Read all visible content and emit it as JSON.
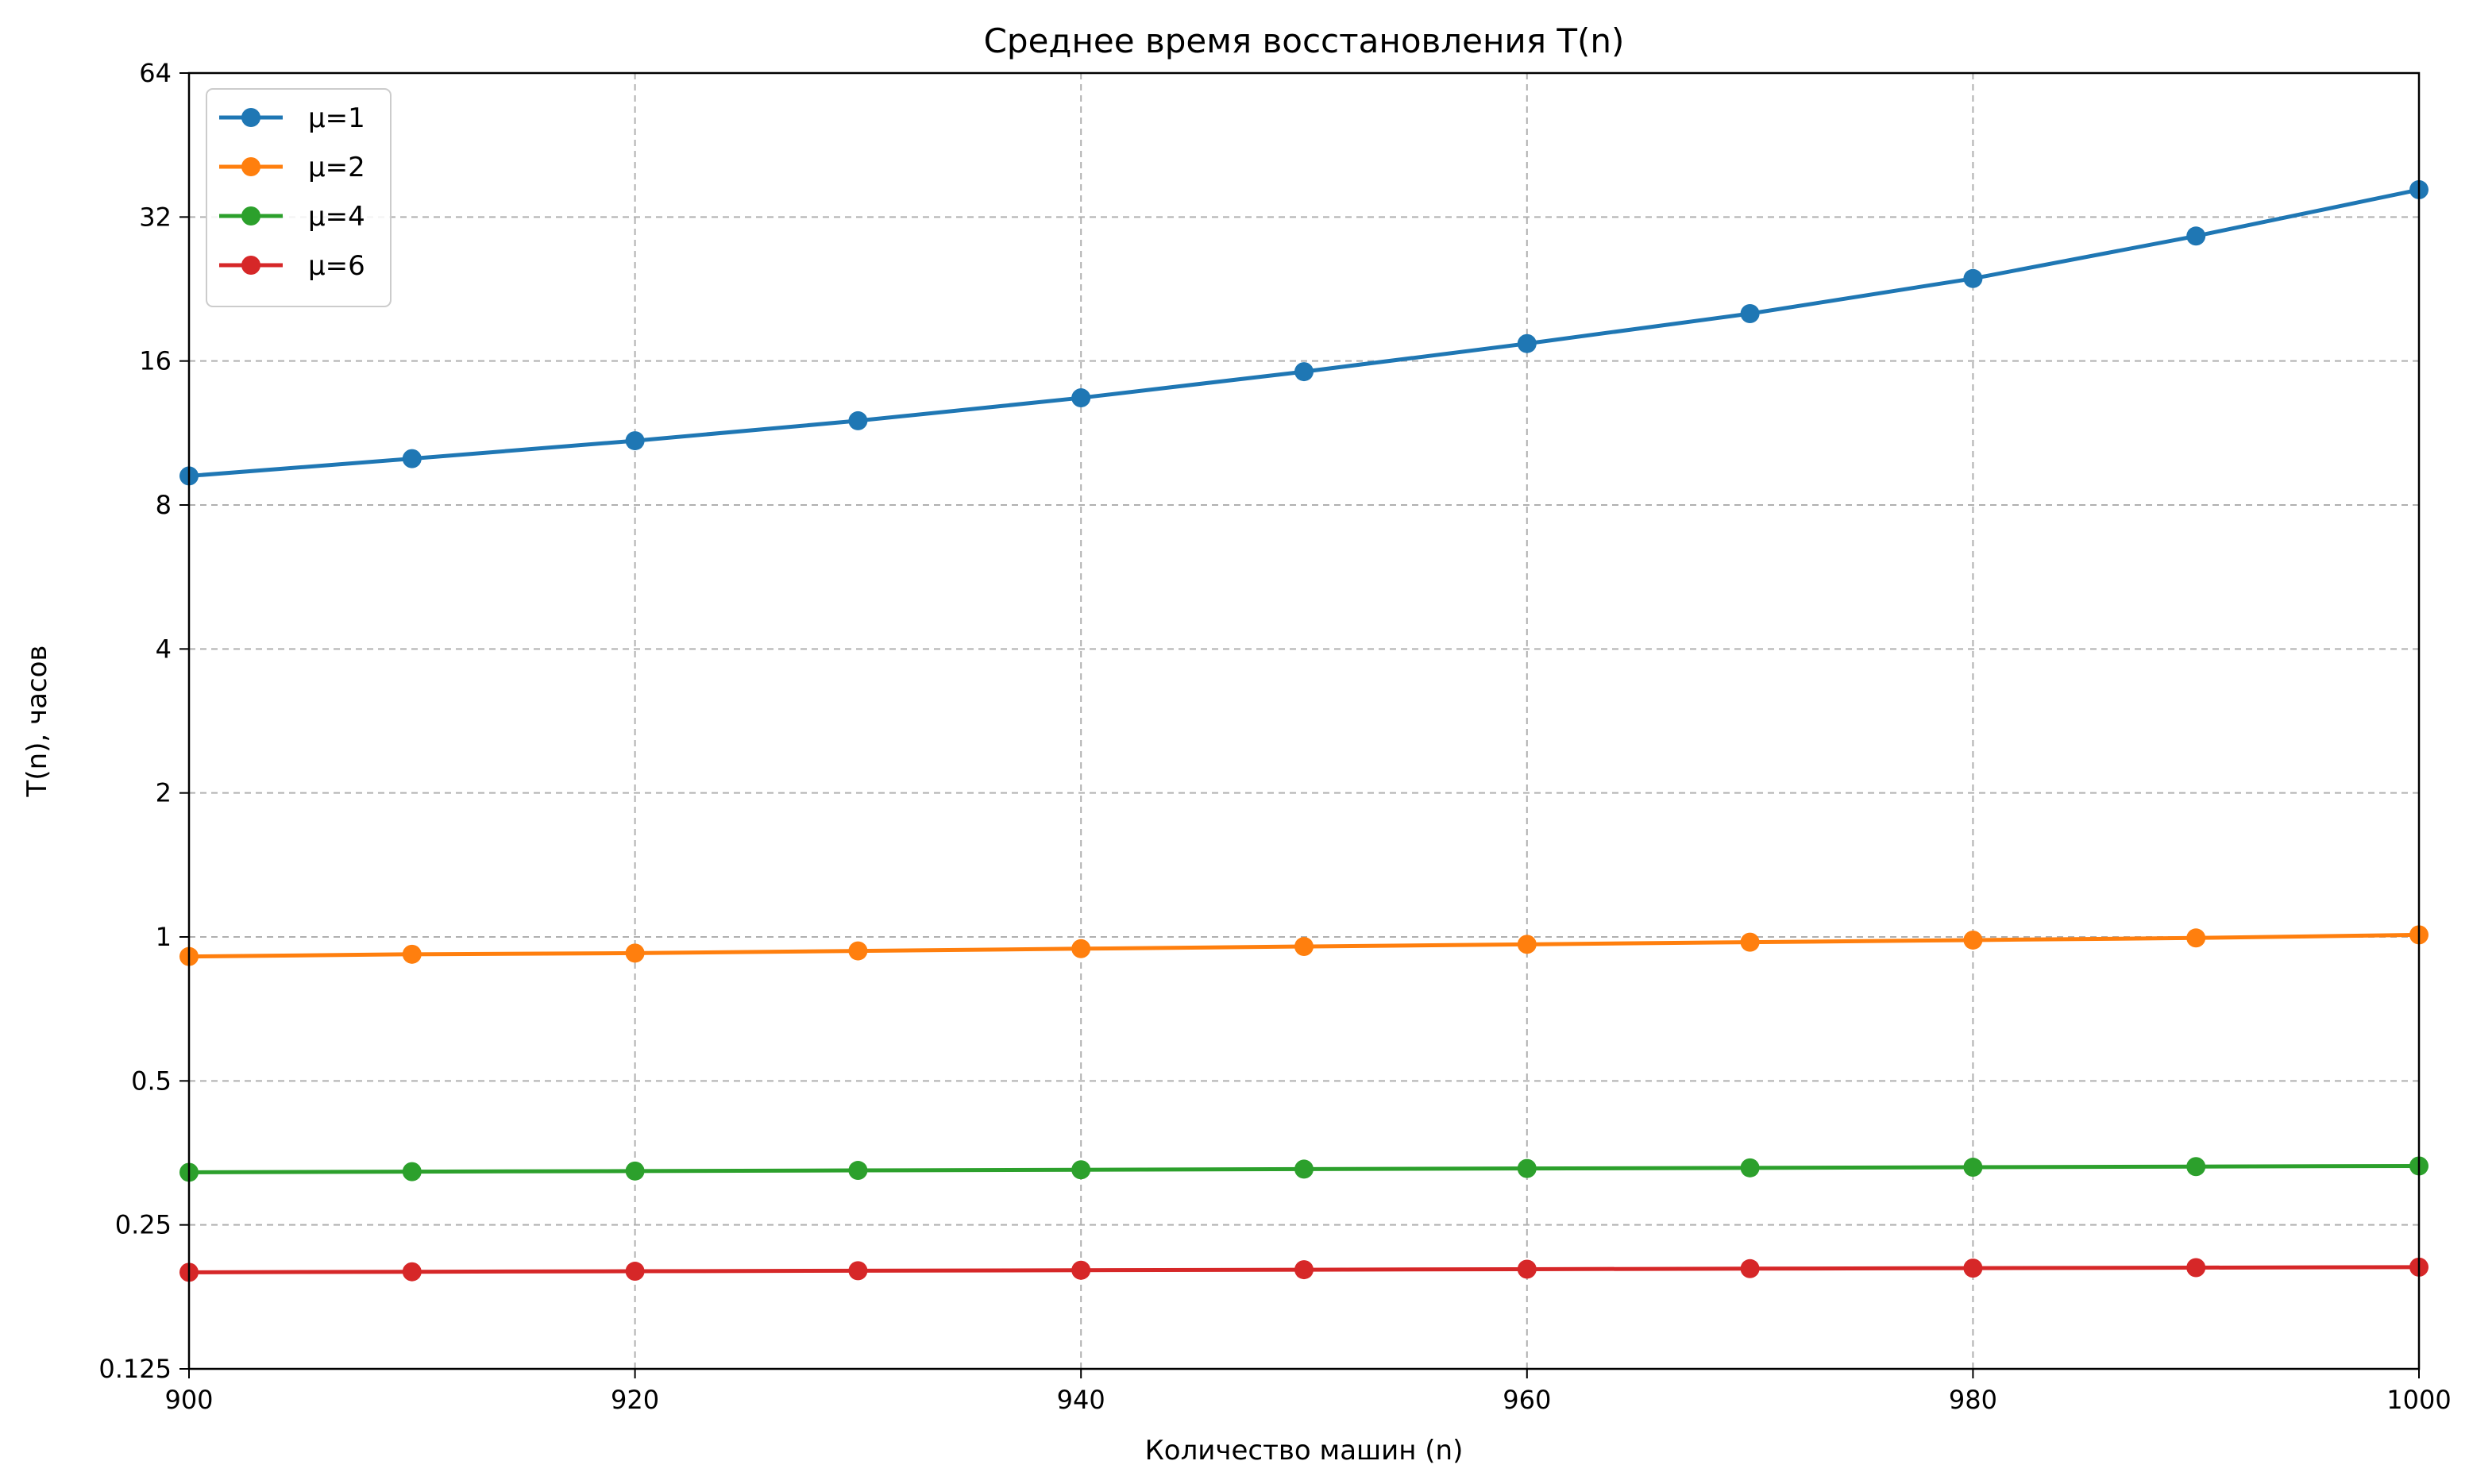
{
  "chart_data": {
    "type": "line",
    "title": "Среднее время восстановления T(n)",
    "xlabel": "Количество машин (n)",
    "ylabel": "T(n), часов",
    "xlim": [
      900,
      1000
    ],
    "ylim": [
      0.125,
      64
    ],
    "yscale": "log2",
    "xticks": [
      900,
      920,
      940,
      960,
      980,
      1000
    ],
    "xtick_labels": [
      "900",
      "920",
      "940",
      "960",
      "980",
      "1000"
    ],
    "yticks": [
      0.125,
      0.25,
      0.5,
      1,
      2,
      4,
      8,
      16,
      32,
      64
    ],
    "ytick_labels": [
      "0.125",
      "0.25",
      "0.5",
      "1",
      "2",
      "4",
      "8",
      "16",
      "32",
      "64"
    ],
    "grid": true,
    "legend_position": "top-left",
    "x": [
      900,
      910,
      920,
      930,
      940,
      950,
      960,
      970,
      980,
      990,
      1000
    ],
    "series": [
      {
        "name": "μ=1",
        "color": "#1f77b4",
        "values": [
          9.2,
          10.0,
          10.9,
          12.0,
          13.4,
          15.2,
          17.4,
          20.1,
          23.8,
          29.2,
          36.5
        ]
      },
      {
        "name": "μ=2",
        "color": "#ff7f0e",
        "values": [
          0.91,
          0.92,
          0.925,
          0.935,
          0.945,
          0.955,
          0.965,
          0.975,
          0.985,
          0.995,
          1.01
        ]
      },
      {
        "name": "μ=4",
        "color": "#2ca02c",
        "values": [
          0.322,
          0.323,
          0.324,
          0.325,
          0.326,
          0.327,
          0.328,
          0.329,
          0.33,
          0.331,
          0.332
        ]
      },
      {
        "name": "μ=6",
        "color": "#d62728",
        "values": [
          0.199,
          0.1995,
          0.2,
          0.2005,
          0.201,
          0.2015,
          0.202,
          0.2025,
          0.203,
          0.2035,
          0.204
        ]
      }
    ]
  }
}
